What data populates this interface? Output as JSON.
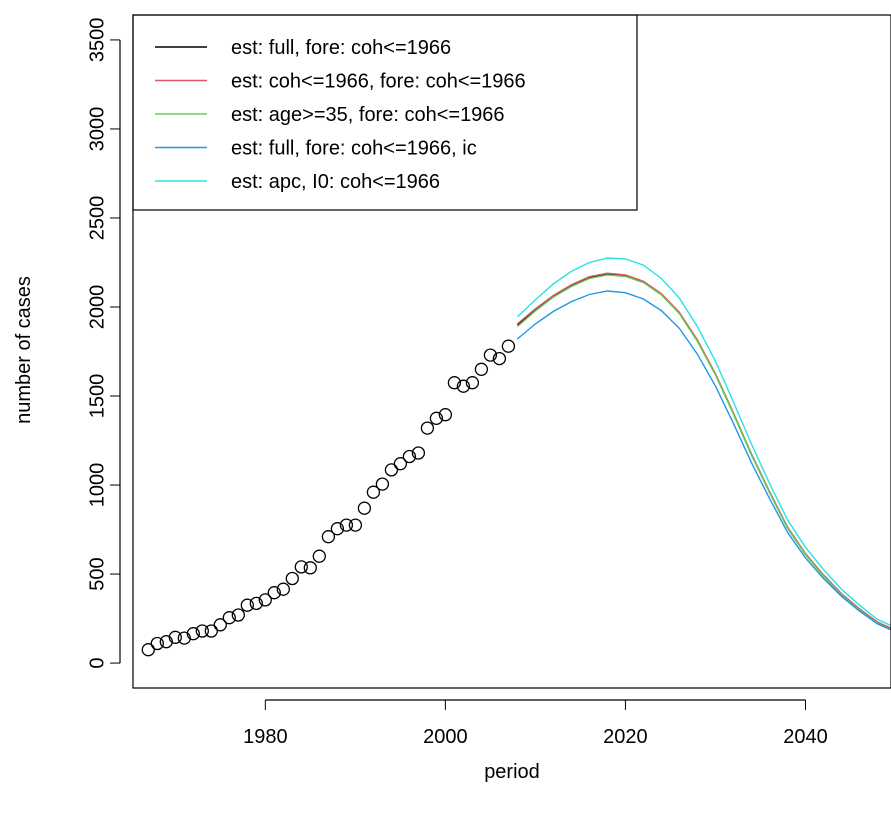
{
  "chart_data": {
    "type": "line",
    "xlabel": "period",
    "ylabel": "number of cases",
    "xlim": [
      1965.3,
      2049.5
    ],
    "ylim": [
      -140,
      3640
    ],
    "x_ticks": [
      1980,
      2000,
      2020,
      2040
    ],
    "y_ticks": [
      0,
      500,
      1000,
      1500,
      2000,
      2500,
      3000,
      3500
    ],
    "grid": false,
    "legend_position": "top-left",
    "observed": {
      "marker": "open-circle",
      "points": [
        {
          "x": 1967,
          "y": 75
        },
        {
          "x": 1968,
          "y": 110
        },
        {
          "x": 1969,
          "y": 120
        },
        {
          "x": 1970,
          "y": 145
        },
        {
          "x": 1971,
          "y": 140
        },
        {
          "x": 1972,
          "y": 165
        },
        {
          "x": 1973,
          "y": 180
        },
        {
          "x": 1974,
          "y": 180
        },
        {
          "x": 1975,
          "y": 215
        },
        {
          "x": 1976,
          "y": 255
        },
        {
          "x": 1977,
          "y": 270
        },
        {
          "x": 1978,
          "y": 325
        },
        {
          "x": 1979,
          "y": 335
        },
        {
          "x": 1980,
          "y": 355
        },
        {
          "x": 1981,
          "y": 395
        },
        {
          "x": 1982,
          "y": 415
        },
        {
          "x": 1983,
          "y": 475
        },
        {
          "x": 1984,
          "y": 540
        },
        {
          "x": 1985,
          "y": 535
        },
        {
          "x": 1986,
          "y": 600
        },
        {
          "x": 1987,
          "y": 710
        },
        {
          "x": 1988,
          "y": 755
        },
        {
          "x": 1989,
          "y": 775
        },
        {
          "x": 1990,
          "y": 775
        },
        {
          "x": 1991,
          "y": 870
        },
        {
          "x": 1992,
          "y": 960
        },
        {
          "x": 1993,
          "y": 1005
        },
        {
          "x": 1994,
          "y": 1085
        },
        {
          "x": 1995,
          "y": 1120
        },
        {
          "x": 1996,
          "y": 1160
        },
        {
          "x": 1997,
          "y": 1180
        },
        {
          "x": 1998,
          "y": 1320
        },
        {
          "x": 1999,
          "y": 1375
        },
        {
          "x": 2000,
          "y": 1395
        },
        {
          "x": 2001,
          "y": 1575
        },
        {
          "x": 2002,
          "y": 1555
        },
        {
          "x": 2003,
          "y": 1575
        },
        {
          "x": 2004,
          "y": 1650
        },
        {
          "x": 2005,
          "y": 1730
        },
        {
          "x": 2006,
          "y": 1710
        },
        {
          "x": 2007,
          "y": 1780
        }
      ]
    },
    "x": [
      2008,
      2010,
      2012,
      2014,
      2016,
      2018,
      2020,
      2022,
      2024,
      2026,
      2028,
      2030,
      2032,
      2034,
      2036,
      2038,
      2040,
      2042,
      2044,
      2046,
      2048,
      2050
    ],
    "series": [
      {
        "name": "est: full, fore: coh<=1966",
        "color": "#000000",
        "values": [
          1900,
          1985,
          2060,
          2120,
          2165,
          2185,
          2175,
          2140,
          2070,
          1965,
          1810,
          1620,
          1400,
          1170,
          960,
          760,
          610,
          490,
          385,
          300,
          225,
          180
        ]
      },
      {
        "name": "est: coh<=1966, fore: coh<=1966",
        "color": "#DF536B",
        "values": [
          1905,
          1990,
          2065,
          2125,
          2170,
          2190,
          2180,
          2145,
          2075,
          1970,
          1815,
          1625,
          1405,
          1175,
          965,
          765,
          615,
          495,
          390,
          305,
          230,
          185
        ]
      },
      {
        "name": "est: age>=35, fore: coh<=1966",
        "color": "#61D04F",
        "values": [
          1890,
          1978,
          2055,
          2115,
          2160,
          2180,
          2172,
          2137,
          2068,
          1962,
          1807,
          1617,
          1398,
          1168,
          958,
          758,
          608,
          488,
          383,
          298,
          223,
          178
        ]
      },
      {
        "name": "est: full, fore: coh<=1966, ic",
        "color": "#2297E6",
        "values": [
          1820,
          1905,
          1975,
          2030,
          2070,
          2090,
          2080,
          2045,
          1980,
          1880,
          1735,
          1555,
          1345,
          1125,
          925,
          735,
          590,
          475,
          375,
          292,
          220,
          175
        ]
      },
      {
        "name": "est: apc, I0: coh<=1966",
        "color": "#28E2E5",
        "values": [
          1945,
          2040,
          2130,
          2200,
          2250,
          2275,
          2270,
          2235,
          2160,
          2050,
          1890,
          1695,
          1465,
          1230,
          1010,
          805,
          650,
          525,
          415,
          325,
          245,
          200
        ]
      }
    ]
  }
}
